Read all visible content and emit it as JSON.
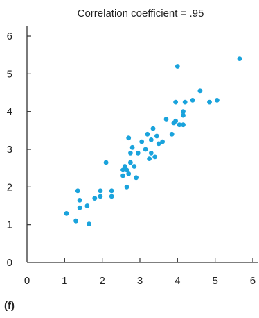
{
  "chart_data": {
    "type": "scatter",
    "title": "Correlation coefficient = .95",
    "panel_label": "(f)",
    "xlabel": "",
    "ylabel": "",
    "xlim": [
      0,
      6
    ],
    "ylim": [
      0,
      6
    ],
    "x_ticks": [
      "0",
      "1",
      "2",
      "3",
      "4",
      "5",
      "6"
    ],
    "y_ticks": [
      "0",
      "1",
      "2",
      "3",
      "4",
      "5",
      "6"
    ],
    "grid": false,
    "legend": "none",
    "point_color": "#1aa3dc",
    "axis_color": "#333333",
    "points": [
      [
        1.05,
        1.3
      ],
      [
        1.3,
        1.1
      ],
      [
        1.35,
        1.9
      ],
      [
        1.4,
        1.65
      ],
      [
        1.4,
        1.45
      ],
      [
        1.6,
        1.5
      ],
      [
        1.65,
        1.02
      ],
      [
        1.8,
        1.7
      ],
      [
        1.95,
        1.9
      ],
      [
        1.95,
        1.75
      ],
      [
        2.1,
        2.65
      ],
      [
        2.25,
        1.9
      ],
      [
        2.25,
        1.75
      ],
      [
        2.55,
        2.45
      ],
      [
        2.55,
        2.3
      ],
      [
        2.6,
        2.55
      ],
      [
        2.65,
        2.45
      ],
      [
        2.65,
        2.0
      ],
      [
        2.7,
        2.35
      ],
      [
        2.7,
        3.3
      ],
      [
        2.75,
        2.65
      ],
      [
        2.75,
        2.9
      ],
      [
        2.8,
        3.05
      ],
      [
        2.85,
        2.55
      ],
      [
        2.9,
        2.25
      ],
      [
        2.95,
        2.9
      ],
      [
        3.05,
        3.2
      ],
      [
        3.15,
        3.0
      ],
      [
        3.2,
        3.4
      ],
      [
        3.25,
        2.75
      ],
      [
        3.3,
        2.9
      ],
      [
        3.3,
        3.25
      ],
      [
        3.35,
        3.55
      ],
      [
        3.4,
        2.8
      ],
      [
        3.45,
        3.35
      ],
      [
        3.5,
        3.15
      ],
      [
        3.6,
        3.2
      ],
      [
        3.7,
        3.8
      ],
      [
        3.85,
        3.4
      ],
      [
        3.9,
        3.7
      ],
      [
        3.95,
        4.25
      ],
      [
        3.95,
        3.75
      ],
      [
        4.0,
        5.2
      ],
      [
        4.05,
        3.65
      ],
      [
        4.15,
        3.9
      ],
      [
        4.15,
        4.0
      ],
      [
        4.15,
        3.65
      ],
      [
        4.2,
        4.25
      ],
      [
        4.4,
        4.3
      ],
      [
        4.6,
        4.55
      ],
      [
        4.85,
        4.25
      ],
      [
        5.05,
        4.3
      ],
      [
        5.65,
        5.4
      ]
    ]
  }
}
